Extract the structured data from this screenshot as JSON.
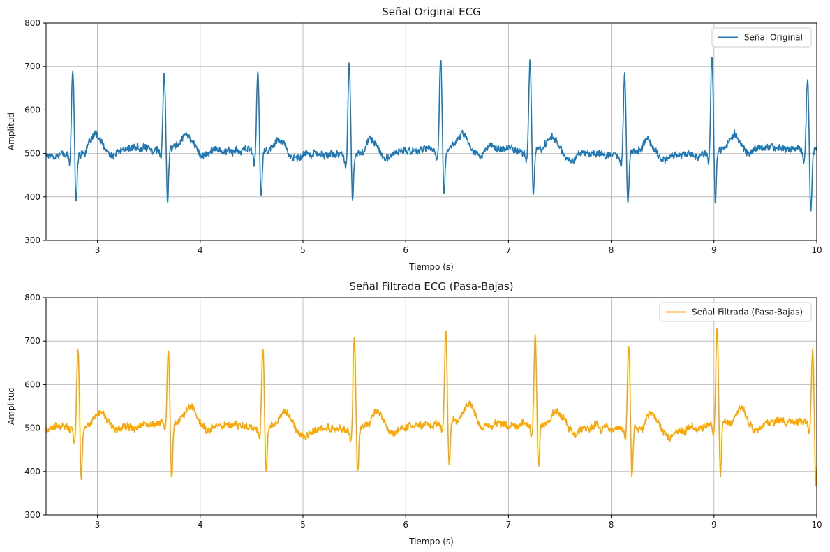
{
  "chart_data": [
    {
      "type": "line",
      "title": "Señal Original ECG",
      "xlabel": "Tiempo (s)",
      "ylabel": "Amplitud",
      "xlim": [
        2.5,
        10
      ],
      "ylim": [
        300,
        800
      ],
      "xticks": [
        3,
        4,
        5,
        6,
        7,
        8,
        9,
        10
      ],
      "yticks": [
        300,
        400,
        500,
        600,
        700,
        800
      ],
      "grid": true,
      "legend_position": "top-right",
      "series": [
        {
          "name": "Señal Original",
          "color": "#1f77b4",
          "baseline": 505,
          "beats": [
            {
              "t": 2.76,
              "peak": 698,
              "trough": 386
            },
            {
              "t": 3.65,
              "peak": 673,
              "trough": 377
            },
            {
              "t": 4.56,
              "peak": 690,
              "trough": 394
            },
            {
              "t": 5.45,
              "peak": 720,
              "trough": 400
            },
            {
              "t": 6.34,
              "peak": 717,
              "trough": 398
            },
            {
              "t": 7.21,
              "peak": 714,
              "trough": 404
            },
            {
              "t": 8.13,
              "peak": 699,
              "trough": 388
            },
            {
              "t": 8.98,
              "peak": 724,
              "trough": 383
            },
            {
              "t": 9.91,
              "peak": 671,
              "trough": 356
            }
          ]
        }
      ]
    },
    {
      "type": "line",
      "title": "Señal Filtrada ECG (Pasa-Bajas)",
      "xlabel": "Tiempo (s)",
      "ylabel": "Amplitud",
      "xlim": [
        2.5,
        10
      ],
      "ylim": [
        300,
        800
      ],
      "xticks": [
        3,
        4,
        5,
        6,
        7,
        8,
        9,
        10
      ],
      "yticks": [
        300,
        400,
        500,
        600,
        700,
        800
      ],
      "grid": true,
      "legend_position": "top-right",
      "series": [
        {
          "name": "Señal Filtrada (Pasa-Bajas)",
          "color": "#ffa500",
          "baseline": 505,
          "beats": [
            {
              "t": 2.81,
              "peak": 697,
              "trough": 385
            },
            {
              "t": 3.69,
              "peak": 674,
              "trough": 377
            },
            {
              "t": 4.61,
              "peak": 689,
              "trough": 393
            },
            {
              "t": 5.5,
              "peak": 721,
              "trough": 400
            },
            {
              "t": 6.39,
              "peak": 718,
              "trough": 397
            },
            {
              "t": 7.26,
              "peak": 714,
              "trough": 403
            },
            {
              "t": 8.17,
              "peak": 700,
              "trough": 386
            },
            {
              "t": 9.03,
              "peak": 724,
              "trough": 383
            },
            {
              "t": 9.96,
              "peak": 672,
              "trough": 355
            }
          ]
        }
      ]
    }
  ]
}
